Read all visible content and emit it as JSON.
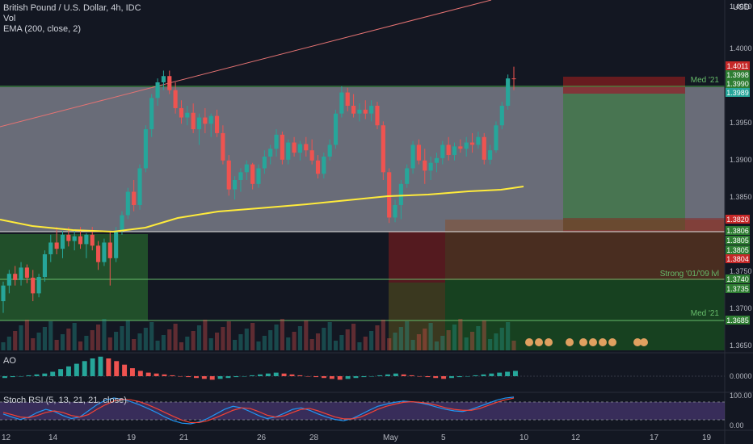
{
  "legends": {
    "symbol": "British Pound / U.S. Dollar, 4h, IDC",
    "vol": "Vol",
    "ema": "EMA (200, close, 2)",
    "ao": "AO",
    "stoch": "Stoch RSI (5, 13, 21, 21, close)"
  },
  "currency": "USD",
  "colors": {
    "background": "#131722",
    "up": "#26a69a",
    "down": "#ef5350",
    "ema": "#ffeb3b",
    "trend": "#e57373",
    "zone": "#b0b3bf",
    "green_zone": "#2e7d32",
    "red_zone": "#b71c1c",
    "stoch_k": "#2196f3",
    "stoch_d": "#f44336",
    "stoch_band": "#7e57c2"
  },
  "price_axis": [
    {
      "value": "1.4050"
    },
    {
      "value": "1.4000"
    },
    {
      "value": "1.3950"
    },
    {
      "value": "1.3900"
    },
    {
      "value": "1.3850"
    },
    {
      "value": "1.3750"
    },
    {
      "value": "1.3700"
    },
    {
      "value": "1.3650"
    }
  ],
  "price_tags": [
    {
      "value": "1.4011",
      "color": "#c62828"
    },
    {
      "value": "1.3998",
      "color": "#2e7d32"
    },
    {
      "value": "1.3990",
      "color": "#2e7d32"
    },
    {
      "value": "1.3989",
      "color": "#26a69a"
    },
    {
      "value": "1.3820",
      "color": "#c62828"
    },
    {
      "value": "1.3806",
      "color": "#2e7d32"
    },
    {
      "value": "1.3805",
      "color": "#2e7d32"
    },
    {
      "value": "1.3805",
      "color": "#2e7d32"
    },
    {
      "value": "1.3804",
      "color": "#c62828"
    },
    {
      "value": "1.3740",
      "color": "#2e7d32"
    },
    {
      "value": "1.3735",
      "color": "#2e7d32"
    },
    {
      "value": "1.3685",
      "color": "#2e7d32"
    }
  ],
  "level_labels": [
    {
      "text": "Med '21"
    },
    {
      "text": "Strong '01/'09 lvl"
    },
    {
      "text": "Med '21"
    }
  ],
  "ao_axis": [
    "0.0000"
  ],
  "stoch_axis": [
    "100.00",
    "0.00"
  ],
  "time_axis": [
    "12",
    "14",
    "19",
    "21",
    "26",
    "28",
    "May",
    "5",
    "10",
    "12",
    "17",
    "19"
  ],
  "chart_data": {
    "type": "candlestick",
    "series_name": "British Pound / U.S. Dollar, 4h, IDC",
    "ylim": [
      1.364,
      1.408
    ],
    "candles": [
      [
        1.3705,
        1.373,
        1.369,
        1.3725
      ],
      [
        1.3725,
        1.3745,
        1.3715,
        1.374
      ],
      [
        1.374,
        1.375,
        1.3725,
        1.3732
      ],
      [
        1.3732,
        1.3755,
        1.3725,
        1.3748
      ],
      [
        1.3748,
        1.3752,
        1.3728,
        1.3735
      ],
      [
        1.3735,
        1.3745,
        1.3705,
        1.3715
      ],
      [
        1.3715,
        1.374,
        1.371,
        1.3736
      ],
      [
        1.3736,
        1.377,
        1.373,
        1.3765
      ],
      [
        1.3765,
        1.379,
        1.3755,
        1.378
      ],
      [
        1.378,
        1.38,
        1.3765,
        1.3772
      ],
      [
        1.3772,
        1.3795,
        1.376,
        1.379
      ],
      [
        1.379,
        1.38,
        1.3775,
        1.3782
      ],
      [
        1.3782,
        1.3795,
        1.377,
        1.3788
      ],
      [
        1.3788,
        1.38,
        1.3772,
        1.3778
      ],
      [
        1.3778,
        1.3792,
        1.376,
        1.379
      ],
      [
        1.379,
        1.38,
        1.377,
        1.3776
      ],
      [
        1.3776,
        1.3782,
        1.3745,
        1.3755
      ],
      [
        1.3755,
        1.3785,
        1.375,
        1.378
      ],
      [
        1.378,
        1.3795,
        1.3725,
        1.376
      ],
      [
        1.376,
        1.38,
        1.3755,
        1.3795
      ],
      [
        1.3795,
        1.382,
        1.379,
        1.3815
      ],
      [
        1.3815,
        1.385,
        1.381,
        1.3845
      ],
      [
        1.3845,
        1.386,
        1.382,
        1.3828
      ],
      [
        1.3828,
        1.388,
        1.3822,
        1.3875
      ],
      [
        1.3875,
        1.393,
        1.387,
        1.3925
      ],
      [
        1.3925,
        1.397,
        1.3915,
        1.3965
      ],
      [
        1.3965,
        1.399,
        1.3955,
        1.3985
      ],
      [
        1.3985,
        1.4,
        1.3975,
        1.3993
      ],
      [
        1.3993,
        1.4,
        1.397,
        1.3975
      ],
      [
        1.3975,
        1.3985,
        1.3945,
        1.3952
      ],
      [
        1.3952,
        1.3962,
        1.3932,
        1.394
      ],
      [
        1.394,
        1.3955,
        1.393,
        1.3946
      ],
      [
        1.3946,
        1.3958,
        1.392,
        1.3925
      ],
      [
        1.3925,
        1.3945,
        1.3905,
        1.394
      ],
      [
        1.394,
        1.3952,
        1.392,
        1.3932
      ],
      [
        1.3932,
        1.3945,
        1.3915,
        1.3942
      ],
      [
        1.3942,
        1.395,
        1.3915,
        1.392
      ],
      [
        1.392,
        1.393,
        1.388,
        1.3885
      ],
      [
        1.3885,
        1.3892,
        1.384,
        1.3848
      ],
      [
        1.3848,
        1.3865,
        1.3835,
        1.386
      ],
      [
        1.386,
        1.3875,
        1.3845,
        1.387
      ],
      [
        1.387,
        1.3885,
        1.386,
        1.388
      ],
      [
        1.388,
        1.3882,
        1.3848,
        1.3855
      ],
      [
        1.3855,
        1.388,
        1.385,
        1.3875
      ],
      [
        1.3875,
        1.3898,
        1.3868,
        1.389
      ],
      [
        1.389,
        1.3905,
        1.388,
        1.39
      ],
      [
        1.39,
        1.3925,
        1.389,
        1.3918
      ],
      [
        1.3918,
        1.3922,
        1.388,
        1.3886
      ],
      [
        1.3886,
        1.3912,
        1.388,
        1.3908
      ],
      [
        1.3908,
        1.3915,
        1.389,
        1.3895
      ],
      [
        1.3895,
        1.391,
        1.3885,
        1.3906
      ],
      [
        1.3906,
        1.3915,
        1.389,
        1.3898
      ],
      [
        1.3898,
        1.3912,
        1.388,
        1.3885
      ],
      [
        1.3885,
        1.3892,
        1.3862,
        1.3868
      ],
      [
        1.3868,
        1.3895,
        1.3862,
        1.389
      ],
      [
        1.389,
        1.3912,
        1.3885,
        1.3905
      ],
      [
        1.3905,
        1.395,
        1.39,
        1.3945
      ],
      [
        1.3945,
        1.398,
        1.394,
        1.3972
      ],
      [
        1.3972,
        1.3978,
        1.3948,
        1.3955
      ],
      [
        1.3955,
        1.397,
        1.394,
        1.3945
      ],
      [
        1.3945,
        1.3958,
        1.3935,
        1.395
      ],
      [
        1.395,
        1.3962,
        1.3938,
        1.3945
      ],
      [
        1.3945,
        1.3962,
        1.3935,
        1.3955
      ],
      [
        1.3955,
        1.396,
        1.3925,
        1.393
      ],
      [
        1.393,
        1.3935,
        1.386,
        1.387
      ],
      [
        1.387,
        1.3875,
        1.3805,
        1.3812
      ],
      [
        1.3812,
        1.3835,
        1.3806,
        1.3828
      ],
      [
        1.3828,
        1.386,
        1.381,
        1.3855
      ],
      [
        1.3855,
        1.388,
        1.385,
        1.3875
      ],
      [
        1.3875,
        1.391,
        1.3868,
        1.3905
      ],
      [
        1.3905,
        1.3912,
        1.388,
        1.3885
      ],
      [
        1.3885,
        1.39,
        1.3855,
        1.3872
      ],
      [
        1.3872,
        1.389,
        1.386,
        1.3882
      ],
      [
        1.3882,
        1.3895,
        1.387,
        1.3888
      ],
      [
        1.3888,
        1.391,
        1.388,
        1.3905
      ],
      [
        1.3905,
        1.3915,
        1.3885,
        1.3892
      ],
      [
        1.3892,
        1.3908,
        1.3885,
        1.3903
      ],
      [
        1.3903,
        1.3912,
        1.3895,
        1.39
      ],
      [
        1.39,
        1.3915,
        1.389,
        1.3908
      ],
      [
        1.3908,
        1.392,
        1.3895,
        1.3905
      ],
      [
        1.3905,
        1.3922,
        1.39,
        1.3915
      ],
      [
        1.3915,
        1.392,
        1.388,
        1.3886
      ],
      [
        1.3886,
        1.3905,
        1.388,
        1.3898
      ],
      [
        1.3898,
        1.3935,
        1.3895,
        1.393
      ],
      [
        1.393,
        1.396,
        1.3925,
        1.3955
      ],
      [
        1.3955,
        1.3995,
        1.395,
        1.399
      ],
      [
        1.399,
        1.4005,
        1.3975,
        1.3989
      ]
    ],
    "ema": [
      1.3815,
      1.381,
      1.3806,
      1.3803,
      1.3806,
      1.3815,
      1.3825,
      1.3833,
      1.384,
      1.3846,
      1.385,
      1.3853,
      1.3855,
      1.3858,
      1.3861,
      1.3864,
      1.3866,
      1.3869,
      1.3872,
      1.3876
    ],
    "ao": [
      -2,
      -1,
      0,
      1,
      2,
      3,
      5,
      8,
      11,
      14,
      17,
      20,
      22,
      20,
      17,
      13,
      9,
      6,
      4,
      3,
      2,
      1,
      0,
      -1,
      -2,
      -3,
      -4,
      -3,
      -2,
      -1,
      0,
      1,
      2,
      3,
      4,
      3,
      2,
      1,
      0,
      -1,
      -2,
      -3,
      -4,
      -3,
      -2,
      -1,
      0,
      1,
      2,
      3,
      2,
      1,
      0,
      -1,
      -2,
      -3,
      -2,
      -1,
      0,
      1,
      2,
      3,
      4,
      5,
      6
    ],
    "stoch_k": [
      40,
      30,
      22,
      30,
      45,
      55,
      48,
      35,
      25,
      30,
      50,
      70,
      85,
      92,
      88,
      80,
      70,
      58,
      45,
      30,
      18,
      10,
      8,
      14,
      25,
      40,
      55,
      65,
      60,
      48,
      35,
      25,
      30,
      42,
      55,
      60,
      52,
      40,
      30,
      22,
      18,
      25,
      38,
      52,
      65,
      72,
      78,
      82,
      80,
      76,
      70,
      62,
      55,
      50,
      48,
      55,
      65,
      75,
      85,
      92,
      95
    ],
    "stoch_d": [
      45,
      38,
      30,
      28,
      35,
      45,
      50,
      45,
      35,
      30,
      38,
      55,
      70,
      82,
      88,
      86,
      80,
      70,
      58,
      45,
      32,
      20,
      12,
      12,
      18,
      28,
      40,
      52,
      60,
      58,
      48,
      36,
      30,
      34,
      45,
      55,
      58,
      50,
      40,
      30,
      24,
      24,
      30,
      42,
      55,
      65,
      72,
      78,
      80,
      78,
      74,
      68,
      60,
      55,
      52,
      52,
      58,
      68,
      78,
      86,
      92
    ]
  }
}
